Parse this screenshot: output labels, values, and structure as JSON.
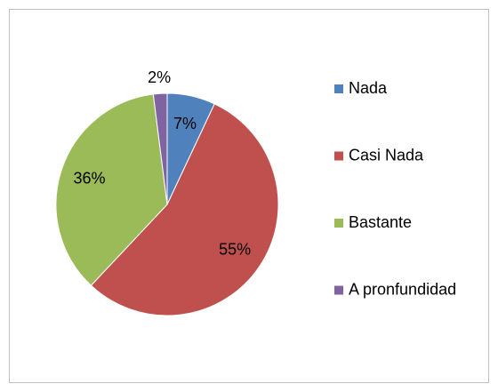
{
  "chart_data": {
    "type": "pie",
    "categories": [
      "Nada",
      "Casi Nada",
      "Bastante",
      "A pronfundidad"
    ],
    "values": [
      7,
      55,
      36,
      2
    ],
    "value_labels": [
      "7%",
      "55%",
      "36%",
      "2%"
    ],
    "colors": [
      "#4f81bd",
      "#c0504d",
      "#9bbb59",
      "#8064a2"
    ],
    "legend": "right"
  }
}
